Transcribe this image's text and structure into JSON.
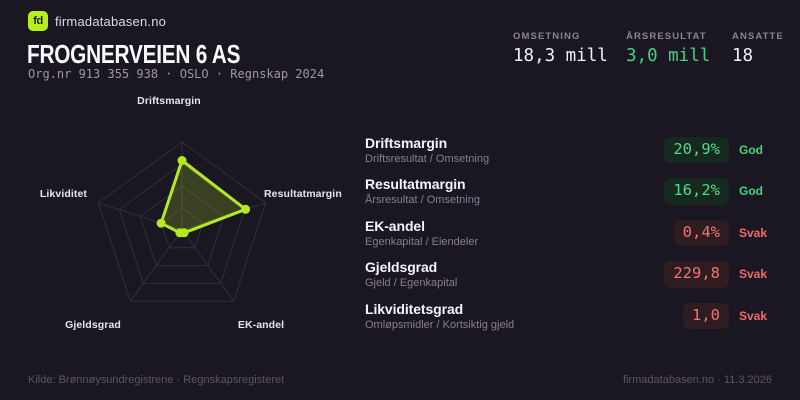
{
  "page": {
    "background": "#1b1722"
  },
  "brand": {
    "logo_text": "fd",
    "logo_color": "#b6ef1e",
    "logo_text_color": "#1b1722",
    "name": "firmadatabasen.no"
  },
  "header": {
    "title": "FROGNERVEIEN 6 AS",
    "subtitle": "Org.nr 913 355 938 · OSLO · Regnskap 2024"
  },
  "stats": [
    {
      "label": "OMSETNING",
      "value": "18,3 mill",
      "tone": "plain"
    },
    {
      "label": "ÅRSRESULTAT",
      "value": "3,0 mill",
      "tone": "green"
    },
    {
      "label": "ANSATTE",
      "value": "18",
      "tone": "plain"
    }
  ],
  "chart_data": {
    "type": "radar",
    "axes": [
      "Driftsmargin",
      "Resultatmargin",
      "EK-andel",
      "Gjeldsgrad",
      "Likviditet"
    ],
    "ratios": [
      0.79,
      0.76,
      0.04,
      0.04,
      0.25
    ],
    "axis_values": [
      "20,9%",
      "16,2%",
      "0,4%",
      "229,8",
      "1,0"
    ],
    "rings": 4,
    "ring_step": 0.25,
    "stroke": "#b3e921",
    "fill": "rgba(179,233,33,0.20)",
    "dot_color": "#b3e921",
    "grid_color": "#322c3d",
    "legend_position": "none",
    "title": ""
  },
  "metrics": [
    {
      "name": "Driftsmargin",
      "formula": "Driftsresultat / Omsetning",
      "value": "20,9%",
      "status": "God",
      "tone": "good"
    },
    {
      "name": "Resultatmargin",
      "formula": "Årsresultat / Omsetning",
      "value": "16,2%",
      "status": "God",
      "tone": "good"
    },
    {
      "name": "EK-andel",
      "formula": "Egenkapital / Eiendeler",
      "value": "0,4%",
      "status": "Svak",
      "tone": "weak"
    },
    {
      "name": "Gjeldsgrad",
      "formula": "Gjeld / Egenkapital",
      "value": "229,8",
      "status": "Svak",
      "tone": "weak"
    },
    {
      "name": "Likviditetsgrad",
      "formula": "Omløpsmidler / Kortsiktig gjeld",
      "value": "1,0",
      "status": "Svak",
      "tone": "weak"
    }
  ],
  "footer": {
    "left": "Kilde: Brønnøysundregistrene · Regnskapsregisteret",
    "right": "firmadatabasen.no · 11.3.2026"
  }
}
